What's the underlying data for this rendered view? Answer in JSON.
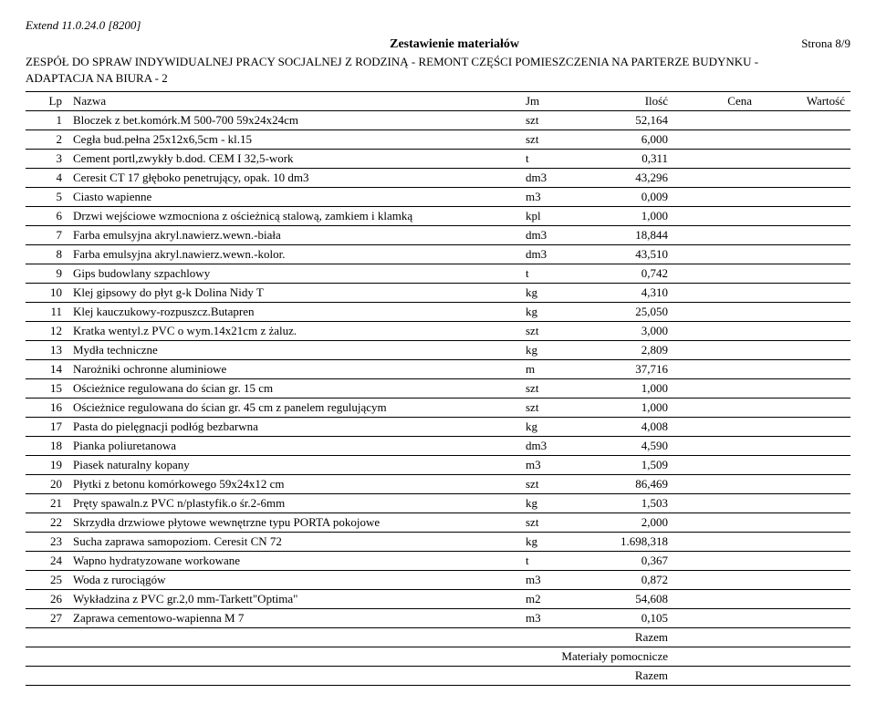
{
  "header": {
    "extend_line": "Extend 11.0.24.0 [8200]",
    "title": "Zestawienie materiałów",
    "page": "Strona 8/9",
    "subtitle_line1": "ZESPÓŁ DO SPRAW INDYWIDUALNEJ PRACY SOCJALNEJ Z RODZINĄ - REMONT CZĘŚCI POMIESZCZENIA NA PARTERZE BUDYNKU -",
    "subtitle_line2": "ADAPTACJA NA BIURA - 2"
  },
  "columns": {
    "lp": "Lp",
    "nazwa": "Nazwa",
    "jm": "Jm",
    "ilosc": "Ilość",
    "cena": "Cena",
    "wartosc": "Wartość"
  },
  "rows": [
    {
      "lp": "1",
      "name": "Bloczek z bet.komórk.M 500-700 59x24x24cm",
      "jm": "szt",
      "qty": "52,164"
    },
    {
      "lp": "2",
      "name": "Cegła bud.pełna 25x12x6,5cm - kl.15",
      "jm": "szt",
      "qty": "6,000"
    },
    {
      "lp": "3",
      "name": "Cement portl,zwykły b.dod. CEM I 32,5-work",
      "jm": "t",
      "qty": "0,311"
    },
    {
      "lp": "4",
      "name": "Ceresit CT 17 głęboko penetrujący, opak. 10 dm3",
      "jm": "dm3",
      "qty": "43,296"
    },
    {
      "lp": "5",
      "name": "Ciasto wapienne",
      "jm": "m3",
      "qty": "0,009"
    },
    {
      "lp": "6",
      "name": "Drzwi wejściowe wzmocniona z ościeżnicą stalową, zamkiem i klamką",
      "jm": "kpl",
      "qty": "1,000"
    },
    {
      "lp": "7",
      "name": "Farba emulsyjna akryl.nawierz.wewn.-biała",
      "jm": "dm3",
      "qty": "18,844"
    },
    {
      "lp": "8",
      "name": "Farba emulsyjna akryl.nawierz.wewn.-kolor.",
      "jm": "dm3",
      "qty": "43,510"
    },
    {
      "lp": "9",
      "name": "Gips budowlany szpachlowy",
      "jm": "t",
      "qty": "0,742"
    },
    {
      "lp": "10",
      "name": "Klej gipsowy do płyt g-k Dolina Nidy T",
      "jm": "kg",
      "qty": "4,310"
    },
    {
      "lp": "11",
      "name": "Klej kauczukowy-rozpuszcz.Butapren",
      "jm": "kg",
      "qty": "25,050"
    },
    {
      "lp": "12",
      "name": "Kratka wentyl.z PVC o wym.14x21cm z żaluz.",
      "jm": "szt",
      "qty": "3,000"
    },
    {
      "lp": "13",
      "name": "Mydła techniczne",
      "jm": "kg",
      "qty": "2,809"
    },
    {
      "lp": "14",
      "name": "Narożniki ochronne aluminiowe",
      "jm": "m",
      "qty": "37,716"
    },
    {
      "lp": "15",
      "name": "Ościeżnice regulowana do ścian gr. 15 cm",
      "jm": "szt",
      "qty": "1,000"
    },
    {
      "lp": "16",
      "name": "Ościeżnice regulowana do ścian gr. 45 cm z panelem regulującym",
      "jm": "szt",
      "qty": "1,000"
    },
    {
      "lp": "17",
      "name": "Pasta do pielęgnacji podłóg bezbarwna",
      "jm": "kg",
      "qty": "4,008"
    },
    {
      "lp": "18",
      "name": "Pianka poliuretanowa",
      "jm": "dm3",
      "qty": "4,590"
    },
    {
      "lp": "19",
      "name": "Piasek naturalny kopany",
      "jm": "m3",
      "qty": "1,509"
    },
    {
      "lp": "20",
      "name": "Płytki z betonu komórkowego 59x24x12 cm",
      "jm": "szt",
      "qty": "86,469"
    },
    {
      "lp": "21",
      "name": "Pręty spawaln.z PVC n/plastyfik.o śr.2-6mm",
      "jm": "kg",
      "qty": "1,503"
    },
    {
      "lp": "22",
      "name": "Skrzydła drzwiowe płytowe wewnętrzne typu PORTA pokojowe",
      "jm": "szt",
      "qty": "2,000"
    },
    {
      "lp": "23",
      "name": "Sucha zaprawa samopoziom. Ceresit CN 72",
      "jm": "kg",
      "qty": "1.698,318"
    },
    {
      "lp": "24",
      "name": "Wapno hydratyzowane workowane",
      "jm": "t",
      "qty": "0,367"
    },
    {
      "lp": "25",
      "name": "Woda z rurociągów",
      "jm": "m3",
      "qty": "0,872"
    },
    {
      "lp": "26",
      "name": "Wykładzina z PVC gr.2,0 mm-Tarkett\"Optima\"",
      "jm": "m2",
      "qty": "54,608"
    },
    {
      "lp": "27",
      "name": "Zaprawa cementowo-wapienna M 7",
      "jm": "m3",
      "qty": "0,105"
    }
  ],
  "summary": {
    "razem1": "Razem",
    "pomocnicze": "Materiały pomocnicze",
    "razem2": "Razem"
  }
}
